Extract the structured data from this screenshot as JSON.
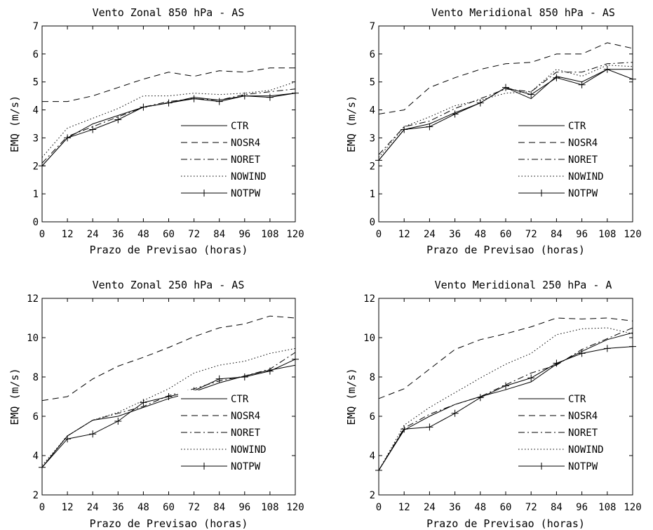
{
  "styles": {
    "CTR": {
      "dash": "",
      "marker": false
    },
    "NOSR4": {
      "dash": "9,6",
      "marker": false
    },
    "NORET": {
      "dash": "9,4,2,4",
      "marker": false
    },
    "NOWIND": {
      "dash": "1.5,3",
      "marker": false
    },
    "NOTPW": {
      "dash": "",
      "marker": true
    }
  },
  "chart_data": [
    {
      "type": "line",
      "title": "Vento Zonal 850 hPa - AS",
      "xlabel": "Prazo de  Previsao (horas)",
      "ylabel": "EMQ  (m/s)",
      "x": [
        0,
        12,
        24,
        36,
        48,
        60,
        72,
        84,
        96,
        108,
        120
      ],
      "x_ticks": [
        "0",
        "12",
        "24",
        "36",
        "48",
        "60",
        "72",
        "84",
        "96",
        "108",
        "120"
      ],
      "ylim": [
        0,
        7
      ],
      "y_ticks": [
        "0",
        "1",
        "2",
        "3",
        "4",
        "5",
        "6",
        "7"
      ],
      "legend_position": "bottom-right",
      "series": [
        {
          "name": "CTR",
          "values": [
            2.0,
            3.0,
            3.5,
            3.8,
            4.1,
            4.25,
            4.45,
            4.35,
            4.5,
            4.5,
            4.6
          ]
        },
        {
          "name": "NOSR4",
          "values": [
            4.3,
            4.3,
            4.5,
            4.8,
            5.1,
            5.35,
            5.2,
            5.4,
            5.35,
            5.5,
            5.5
          ]
        },
        {
          "name": "NORET",
          "values": [
            2.1,
            3.05,
            3.4,
            3.75,
            4.1,
            4.3,
            4.4,
            4.35,
            4.55,
            4.65,
            4.75
          ]
        },
        {
          "name": "NOWIND",
          "values": [
            2.3,
            3.35,
            3.7,
            4.05,
            4.5,
            4.5,
            4.6,
            4.55,
            4.6,
            4.7,
            5.0
          ]
        },
        {
          "name": "NOTPW",
          "values": [
            2.0,
            3.0,
            3.3,
            3.65,
            4.1,
            4.25,
            4.4,
            4.3,
            4.5,
            4.45,
            4.6
          ]
        }
      ]
    },
    {
      "type": "line",
      "title": "Vento Meridional 850 hPa - AS",
      "xlabel": "Prazo de  Previsao (horas)",
      "ylabel": "EMQ  (m/s)",
      "x": [
        0,
        12,
        24,
        36,
        48,
        60,
        72,
        84,
        96,
        108,
        120
      ],
      "x_ticks": [
        "0",
        "12",
        "24",
        "36",
        "48",
        "60",
        "72",
        "84",
        "96",
        "108",
        "120"
      ],
      "ylim": [
        0,
        7
      ],
      "y_ticks": [
        "0",
        "1",
        "2",
        "3",
        "4",
        "5",
        "6",
        "7"
      ],
      "legend_position": "bottom-right",
      "series": [
        {
          "name": "CTR",
          "values": [
            2.2,
            3.3,
            3.5,
            3.9,
            4.25,
            4.8,
            4.4,
            5.2,
            5.0,
            5.45,
            5.45
          ]
        },
        {
          "name": "NOSR4",
          "values": [
            3.85,
            4.0,
            4.8,
            5.15,
            5.45,
            5.65,
            5.7,
            6.0,
            6.0,
            6.4,
            6.2
          ]
        },
        {
          "name": "NORET",
          "values": [
            2.4,
            3.4,
            3.6,
            4.05,
            4.4,
            4.75,
            4.65,
            5.35,
            5.35,
            5.65,
            5.7
          ]
        },
        {
          "name": "NOWIND",
          "values": [
            2.3,
            3.4,
            3.75,
            4.15,
            4.35,
            4.6,
            4.65,
            5.45,
            5.2,
            5.6,
            5.55
          ]
        },
        {
          "name": "NOTPW",
          "values": [
            2.2,
            3.3,
            3.4,
            3.85,
            4.25,
            4.8,
            4.55,
            5.15,
            4.9,
            5.45,
            5.1
          ]
        }
      ]
    },
    {
      "type": "line",
      "title": "Vento Zonal 250 hPa - AS",
      "xlabel": "Prazo de  Previsao (horas)",
      "ylabel": "EMQ  (m/s)",
      "x": [
        0,
        12,
        24,
        36,
        48,
        60,
        72,
        84,
        96,
        108,
        120
      ],
      "x_ticks": [
        "0",
        "12",
        "24",
        "36",
        "48",
        "60",
        "72",
        "84",
        "96",
        "108",
        "120"
      ],
      "ylim": [
        2,
        12
      ],
      "y_ticks": [
        "2",
        "4",
        "6",
        "8",
        "10",
        "12"
      ],
      "legend_position": "bottom-right",
      "series": [
        {
          "name": "CTR",
          "values": [
            3.4,
            5.0,
            5.8,
            6.0,
            6.45,
            6.9,
            7.25,
            7.7,
            8.05,
            8.35,
            8.6
          ]
        },
        {
          "name": "NOSR4",
          "values": [
            6.8,
            7.0,
            7.9,
            8.55,
            9.0,
            9.5,
            10.05,
            10.5,
            10.7,
            11.1,
            11.0
          ]
        },
        {
          "name": "NORET",
          "values": [
            3.4,
            5.0,
            5.8,
            6.15,
            6.5,
            7.05,
            7.4,
            7.8,
            8.05,
            8.4,
            9.25
          ]
        },
        {
          "name": "NOWIND",
          "values": [
            3.5,
            5.0,
            5.8,
            6.2,
            6.8,
            7.4,
            8.2,
            8.6,
            8.8,
            9.2,
            9.45
          ]
        },
        {
          "name": "NOTPW",
          "values": [
            3.4,
            4.85,
            5.1,
            5.75,
            6.7,
            7.0,
            7.3,
            7.9,
            8.0,
            8.3,
            8.9
          ]
        }
      ]
    },
    {
      "type": "line",
      "title": "Vento Meridional 250 hPa - A",
      "xlabel": "Prazo de  Previsao (horas)",
      "ylabel": "EMQ  (m/s)",
      "x": [
        0,
        12,
        24,
        36,
        48,
        60,
        72,
        84,
        96,
        108,
        120
      ],
      "x_ticks": [
        "0",
        "12",
        "24",
        "36",
        "48",
        "60",
        "72",
        "84",
        "96",
        "108",
        "120"
      ],
      "ylim": [
        2,
        12
      ],
      "y_ticks": [
        "2",
        "4",
        "6",
        "8",
        "10",
        "12"
      ],
      "legend_position": "bottom-right",
      "series": [
        {
          "name": "CTR",
          "values": [
            3.25,
            5.3,
            6.0,
            6.6,
            7.0,
            7.35,
            7.75,
            8.65,
            9.3,
            9.9,
            10.25
          ]
        },
        {
          "name": "NOSR4",
          "values": [
            6.9,
            7.4,
            8.4,
            9.4,
            9.9,
            10.2,
            10.55,
            11.0,
            10.95,
            11.0,
            10.85
          ]
        },
        {
          "name": "NORET",
          "values": [
            3.25,
            5.4,
            6.1,
            6.6,
            7.0,
            7.6,
            8.2,
            8.6,
            9.4,
            9.95,
            10.5
          ]
        },
        {
          "name": "NOWIND",
          "values": [
            3.25,
            5.55,
            6.45,
            7.2,
            7.95,
            8.65,
            9.2,
            10.15,
            10.45,
            10.5,
            10.2
          ]
        },
        {
          "name": "NOTPW",
          "values": [
            3.25,
            5.35,
            5.45,
            6.15,
            6.95,
            7.55,
            7.95,
            8.7,
            9.2,
            9.45,
            9.55
          ]
        }
      ]
    }
  ]
}
